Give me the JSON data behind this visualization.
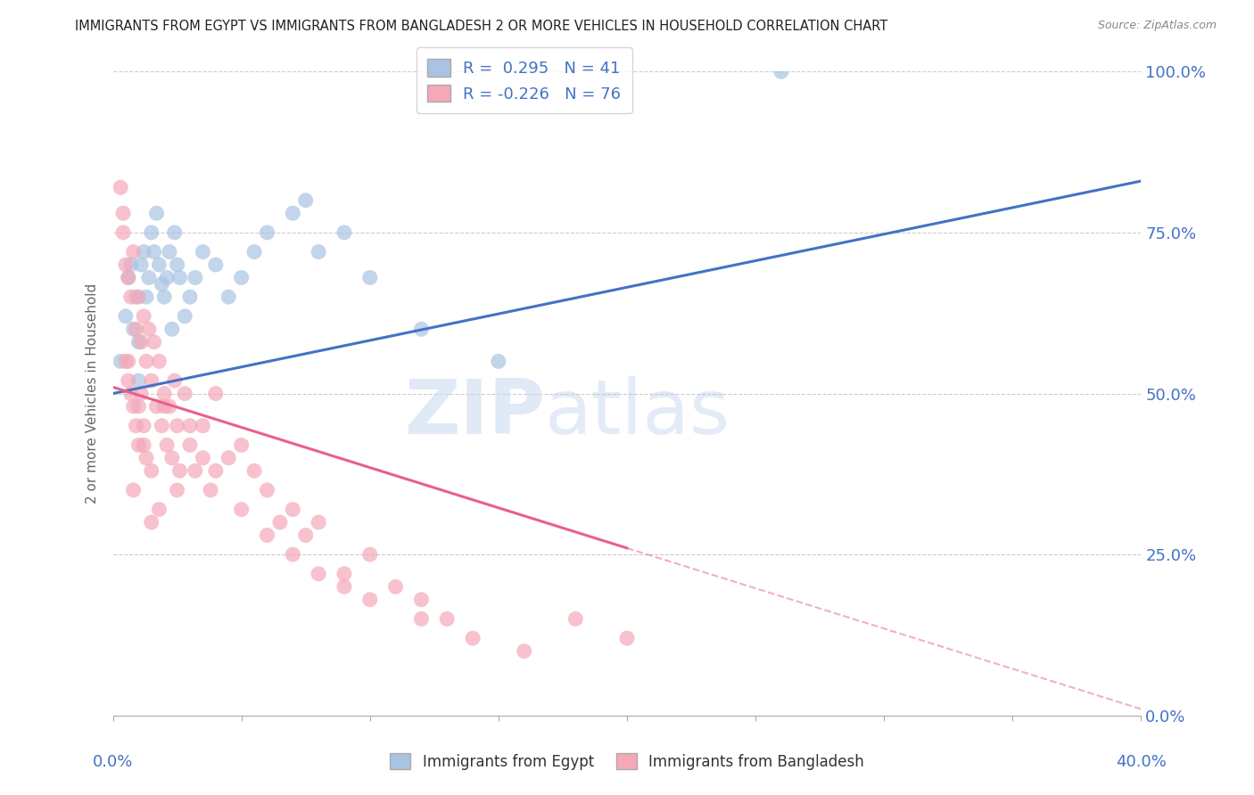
{
  "title": "IMMIGRANTS FROM EGYPT VS IMMIGRANTS FROM BANGLADESH 2 OR MORE VEHICLES IN HOUSEHOLD CORRELATION CHART",
  "source": "Source: ZipAtlas.com",
  "ylabel": "2 or more Vehicles in Household",
  "ytick_values": [
    0.0,
    25.0,
    50.0,
    75.0,
    100.0
  ],
  "xlim": [
    0.0,
    40.0
  ],
  "ylim": [
    0.0,
    100.0
  ],
  "egypt_R": 0.295,
  "egypt_N": 41,
  "bangladesh_R": -0.226,
  "bangladesh_N": 76,
  "egypt_color": "#a8c4e2",
  "bangladesh_color": "#f4a8b8",
  "egypt_line_color": "#4472c4",
  "bangladesh_line_color": "#e8608a",
  "legend_label_egypt": "Immigrants from Egypt",
  "legend_label_bangladesh": "Immigrants from Bangladesh",
  "watermark_zip": "ZIP",
  "watermark_atlas": "atlas",
  "egypt_x": [
    0.3,
    0.5,
    0.6,
    0.7,
    0.8,
    0.9,
    1.0,
    1.0,
    1.1,
    1.2,
    1.3,
    1.4,
    1.5,
    1.6,
    1.7,
    1.8,
    1.9,
    2.0,
    2.1,
    2.2,
    2.3,
    2.4,
    2.5,
    2.6,
    2.8,
    3.0,
    3.2,
    3.5,
    4.0,
    4.5,
    5.0,
    5.5,
    6.0,
    7.0,
    7.5,
    8.0,
    9.0,
    10.0,
    12.0,
    15.0,
    26.0
  ],
  "egypt_y": [
    55,
    62,
    68,
    70,
    60,
    65,
    58,
    52,
    70,
    72,
    65,
    68,
    75,
    72,
    78,
    70,
    67,
    65,
    68,
    72,
    60,
    75,
    70,
    68,
    62,
    65,
    68,
    72,
    70,
    65,
    68,
    72,
    75,
    78,
    80,
    72,
    75,
    68,
    60,
    55,
    100
  ],
  "bangladesh_x": [
    0.3,
    0.4,
    0.5,
    0.5,
    0.6,
    0.6,
    0.7,
    0.7,
    0.8,
    0.8,
    0.9,
    0.9,
    1.0,
    1.0,
    1.1,
    1.1,
    1.2,
    1.2,
    1.3,
    1.3,
    1.4,
    1.5,
    1.5,
    1.6,
    1.7,
    1.8,
    1.9,
    2.0,
    2.1,
    2.2,
    2.3,
    2.4,
    2.5,
    2.6,
    2.8,
    3.0,
    3.2,
    3.5,
    3.8,
    4.0,
    4.5,
    5.0,
    5.5,
    6.0,
    6.5,
    7.0,
    7.5,
    8.0,
    9.0,
    10.0,
    11.0,
    12.0,
    13.0,
    0.4,
    0.6,
    0.8,
    1.0,
    1.2,
    1.5,
    1.8,
    2.0,
    2.5,
    3.0,
    3.5,
    4.0,
    5.0,
    6.0,
    7.0,
    8.0,
    9.0,
    10.0,
    12.0,
    14.0,
    16.0,
    18.0,
    20.0
  ],
  "bangladesh_y": [
    82,
    75,
    70,
    55,
    68,
    52,
    65,
    50,
    72,
    48,
    60,
    45,
    65,
    42,
    58,
    50,
    62,
    45,
    55,
    40,
    60,
    52,
    38,
    58,
    48,
    55,
    45,
    50,
    42,
    48,
    40,
    52,
    45,
    38,
    50,
    42,
    38,
    45,
    35,
    50,
    40,
    42,
    38,
    35,
    30,
    32,
    28,
    30,
    22,
    25,
    20,
    18,
    15,
    78,
    55,
    35,
    48,
    42,
    30,
    32,
    48,
    35,
    45,
    40,
    38,
    32,
    28,
    25,
    22,
    20,
    18,
    15,
    12,
    10,
    15,
    12
  ],
  "egypt_trend_x0": 0.0,
  "egypt_trend_y0": 50.0,
  "egypt_trend_x1": 40.0,
  "egypt_trend_y1": 83.0,
  "bangladesh_solid_x0": 0.0,
  "bangladesh_solid_y0": 51.0,
  "bangladesh_solid_x1": 20.0,
  "bangladesh_solid_y1": 26.0,
  "bangladesh_dash_x0": 20.0,
  "bangladesh_dash_y0": 26.0,
  "bangladesh_dash_x1": 40.0,
  "bangladesh_dash_y1": 1.0
}
